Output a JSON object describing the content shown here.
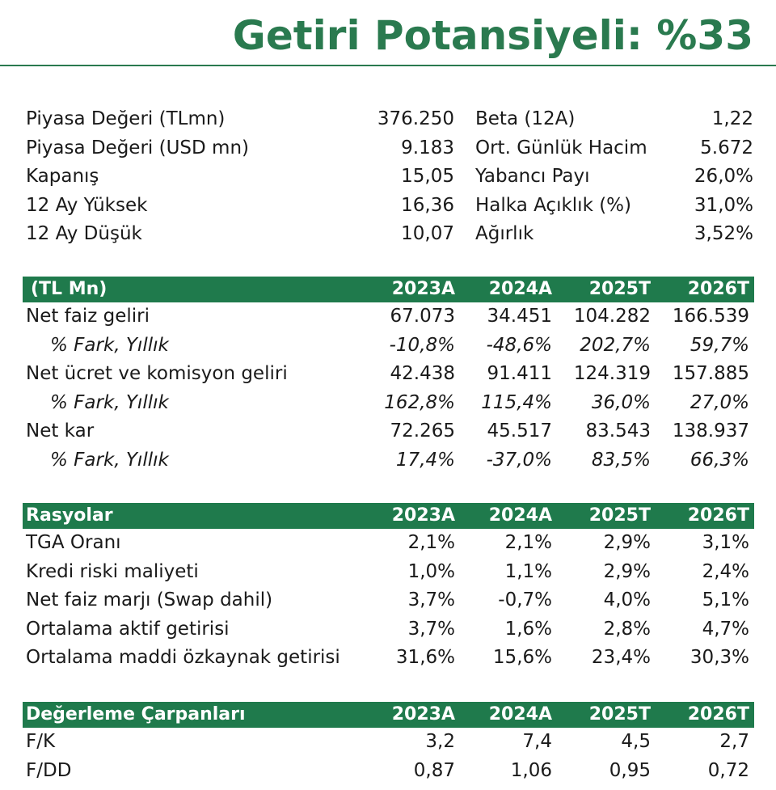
{
  "title": "Getiri Potansiyeli: %33",
  "info": [
    {
      "l_label": "Piyasa Değeri (TLmn)",
      "l_val": "376.250",
      "r_label": "Beta (12A)",
      "r_val": "1,22"
    },
    {
      "l_label": "Piyasa Değeri (USD mn)",
      "l_val": "9.183",
      "r_label": "Ort. Günlük Hacim",
      "r_val": "5.672"
    },
    {
      "l_label": "Kapanış",
      "l_val": "15,05",
      "r_label": "Yabancı Payı",
      "r_val": "26,0%"
    },
    {
      "l_label": "12 Ay Yüksek",
      "l_val": "16,36",
      "r_label": "Halka Açıklık (%)",
      "r_val": "31,0%"
    },
    {
      "l_label": "12 Ay Düşük",
      "l_val": "10,07",
      "r_label": "Ağırlık",
      "r_val": "3,52%"
    }
  ],
  "financials": {
    "header": [
      "(TL Mn)",
      "2023A",
      "2024A",
      "2025T",
      "2026T"
    ],
    "rows": [
      [
        "Net faiz geliri",
        "67.073",
        "34.451",
        "104.282",
        "166.539"
      ],
      [
        "% Fark, Yıllık",
        "-10,8%",
        "-48,6%",
        "202,7%",
        "59,7%"
      ],
      [
        "Net ücret ve komisyon geliri",
        "42.438",
        "91.411",
        "124.319",
        "157.885"
      ],
      [
        "% Fark, Yıllık",
        "162,8%",
        "115,4%",
        "36,0%",
        "27,0%"
      ],
      [
        "Net kar",
        "72.265",
        "45.517",
        "83.543",
        "138.937"
      ],
      [
        "% Fark, Yıllık",
        "17,4%",
        "-37,0%",
        "83,5%",
        "66,3%"
      ]
    ]
  },
  "ratios": {
    "header": [
      "Rasyolar",
      "2023A",
      "2024A",
      "2025T",
      "2026T"
    ],
    "rows": [
      [
        "TGA Oranı",
        "2,1%",
        "2,1%",
        "2,9%",
        "3,1%"
      ],
      [
        "Kredi riski maliyeti",
        "1,0%",
        "1,1%",
        "2,9%",
        "2,4%"
      ],
      [
        "Net faiz marjı (Swap dahil)",
        "3,7%",
        "-0,7%",
        "4,0%",
        "5,1%"
      ],
      [
        "Ortalama aktif getirisi",
        "3,7%",
        "1,6%",
        "2,8%",
        "4,7%"
      ],
      [
        "Ortalama maddi özkaynak getirisi",
        "31,6%",
        "15,6%",
        "23,4%",
        "30,3%"
      ]
    ]
  },
  "multiples": {
    "header": [
      "Değerleme Çarpanları",
      "2023A",
      "2024A",
      "2025T",
      "2026T"
    ],
    "rows": [
      [
        "F/K",
        "3,2",
        "7,4",
        "4,5",
        "2,7"
      ],
      [
        "F/DD",
        "0,87",
        "1,06",
        "0,95",
        "0,72"
      ]
    ]
  },
  "colors": {
    "accent": "#2a7a4f",
    "header_bg": "#1f7a4c"
  }
}
